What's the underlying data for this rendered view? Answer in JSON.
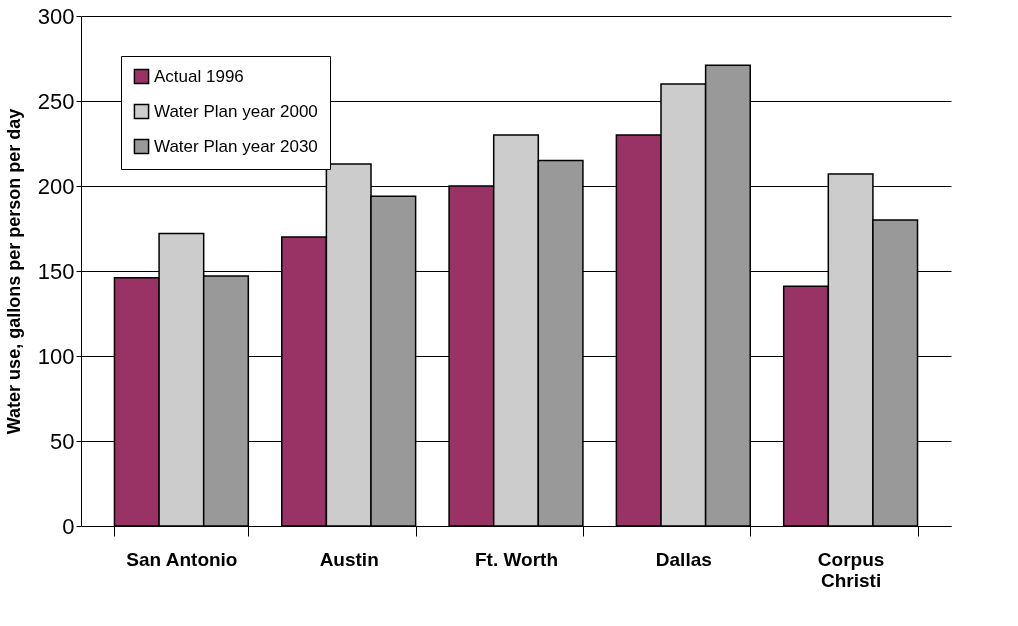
{
  "chart_data": {
    "type": "bar",
    "ylabel": "Water use, gallons per person per day",
    "categories": [
      "San Antonio",
      "Austin",
      "Ft. Worth",
      "Dallas",
      "Corpus Christi"
    ],
    "series": [
      {
        "name": "Actual 1996",
        "color": "#993366",
        "values": [
          146,
          170,
          200,
          230,
          141
        ]
      },
      {
        "name": "Water Plan year 2000",
        "color": "#cccccc",
        "values": [
          172,
          213,
          230,
          260,
          207
        ]
      },
      {
        "name": "Water Plan year 2030",
        "color": "#999999",
        "values": [
          147,
          194,
          215,
          271,
          180
        ]
      }
    ],
    "ylim": [
      0,
      300
    ],
    "yticks": [
      0,
      50,
      100,
      150,
      200,
      250,
      300
    ],
    "grid": "y",
    "legend": "top left"
  }
}
